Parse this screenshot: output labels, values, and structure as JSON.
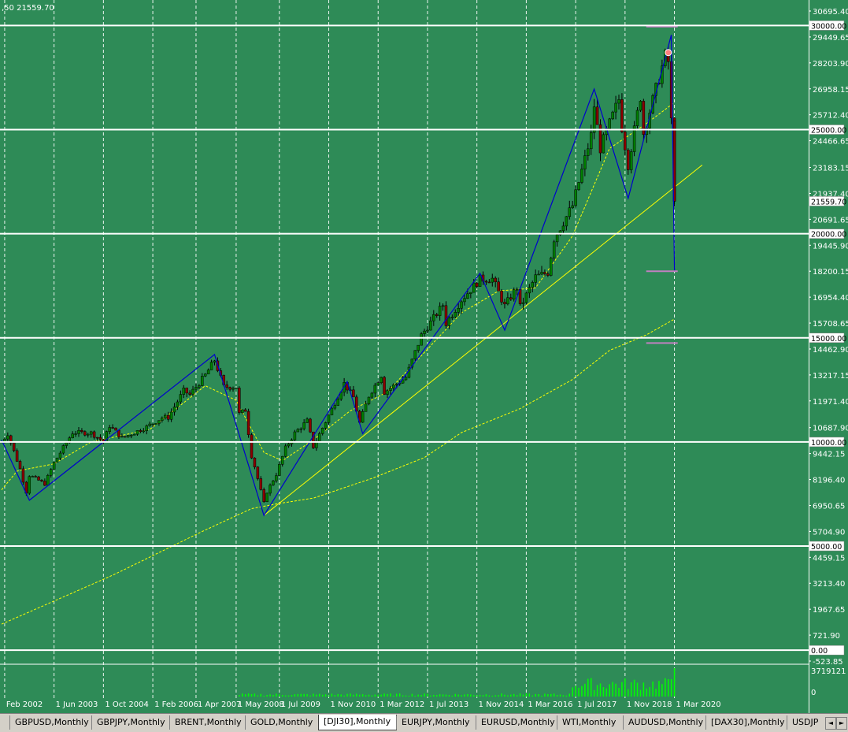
{
  "ohlc_readout": ",50 21559.70",
  "colors": {
    "background": "#2e8b57",
    "grid": "#ffffff",
    "text": "#ffffff",
    "bull_candle": "#008000",
    "bear_candle": "#8b0000",
    "wick": "#000000",
    "zigzag": "#0000cd",
    "ma_fast": "#ffff00",
    "ma_slow": "#ffff00",
    "trendline": "#ffff00",
    "level_line": "#ffffff",
    "volume": "#00ff00",
    "price_tag_bg": "#ffffff",
    "markers": "#c080c0"
  },
  "chart_data": {
    "type": "candlestick",
    "symbol": "[DJI30]",
    "timeframe": "Monthly",
    "price_axis": {
      "ylim": [
        -523.85,
        30695.4
      ],
      "ticks": [
        30695.4,
        29449.65,
        28203.9,
        26958.15,
        25712.4,
        24466.65,
        23183.15,
        21937.4,
        20691.65,
        19445.9,
        18200.15,
        16954.4,
        15708.65,
        14462.9,
        13217.15,
        11971.4,
        10687.9,
        9442.15,
        8196.4,
        6950.65,
        5704.9,
        4459.15,
        3213.4,
        1967.65,
        721.9,
        -523.85
      ],
      "tick_labels": [
        "30695.40",
        "29449.65",
        "28203.90",
        "26958.15",
        "25712.40",
        "24466.65",
        "23183.15",
        "21937.40",
        "20691.65",
        "19445.90",
        "18200.15",
        "16954.40",
        "15708.65",
        "14462.90",
        "13217.15",
        "11971.40",
        "10687.90",
        "9442.15",
        "8196.40",
        "6950.65",
        "5704.90",
        "4459.15",
        "3213.40",
        "1967.65",
        "721.90",
        "-523.85"
      ],
      "level_lines": [
        30000,
        25000,
        20000,
        15000,
        10000,
        5000,
        0
      ],
      "level_labels": [
        "30000.00",
        "25000.00",
        "20000.00",
        "15000.00",
        "10000.00",
        "5000.00",
        "0.00"
      ],
      "current_price": 21559.7,
      "current_price_label": "21559.70"
    },
    "time_axis": {
      "labels": [
        "Feb 2002",
        "1 Jun 2003",
        "1 Oct 2004",
        "1 Feb 2006",
        "1 Apr 2007",
        "1 May 2008",
        "1 Jul 2009",
        "1 Nov 2010",
        "1 Mar 2012",
        "1 Jul 2013",
        "1 Nov 2014",
        "1 Mar 2016",
        "1 Jul 2017",
        "1 Nov 2018",
        "1 Mar 2020"
      ],
      "grid_months": [
        "2002-02",
        "2003-06",
        "2004-10",
        "2006-02",
        "2007-04",
        "2008-05",
        "2009-07",
        "2010-11",
        "2012-03",
        "2013-07",
        "2014-11",
        "2016-03",
        "2017-07",
        "2018-11",
        "2020-03"
      ],
      "start": "2002-01",
      "end": "2021-06"
    },
    "close_anchors": [
      [
        "2002-01",
        10000
      ],
      [
        "2002-03",
        10400
      ],
      [
        "2002-07",
        8700
      ],
      [
        "2002-09",
        7600
      ],
      [
        "2002-10",
        8400
      ],
      [
        "2003-03",
        7990
      ],
      [
        "2003-06",
        9000
      ],
      [
        "2003-12",
        10450
      ],
      [
        "2004-06",
        10435
      ],
      [
        "2004-10",
        10030
      ],
      [
        "2004-12",
        10780
      ],
      [
        "2005-04",
        10190
      ],
      [
        "2005-12",
        10720
      ],
      [
        "2006-05",
        11170
      ],
      [
        "2006-07",
        11180
      ],
      [
        "2006-12",
        12460
      ],
      [
        "2007-02",
        12270
      ],
      [
        "2007-07",
        13210
      ],
      [
        "2007-10",
        13930
      ],
      [
        "2008-01",
        12650
      ],
      [
        "2008-05",
        12640
      ],
      [
        "2008-06",
        11350
      ],
      [
        "2008-08",
        11540
      ],
      [
        "2008-10",
        9330
      ],
      [
        "2008-11",
        8830
      ],
      [
        "2009-02",
        7060
      ],
      [
        "2009-03",
        7610
      ],
      [
        "2009-06",
        8450
      ],
      [
        "2009-09",
        9710
      ],
      [
        "2009-12",
        10430
      ],
      [
        "2010-04",
        11010
      ],
      [
        "2010-06",
        9770
      ],
      [
        "2010-12",
        11580
      ],
      [
        "2011-04",
        12810
      ],
      [
        "2011-07",
        12140
      ],
      [
        "2011-09",
        10910
      ],
      [
        "2011-12",
        12220
      ],
      [
        "2012-04",
        13210
      ],
      [
        "2012-05",
        12390
      ],
      [
        "2012-12",
        13100
      ],
      [
        "2013-05",
        15120
      ],
      [
        "2013-12",
        16580
      ],
      [
        "2014-01",
        15700
      ],
      [
        "2014-06",
        16830
      ],
      [
        "2014-12",
        17820
      ],
      [
        "2015-04",
        17840
      ],
      [
        "2015-08",
        16530
      ],
      [
        "2015-12",
        17430
      ],
      [
        "2016-01",
        16470
      ],
      [
        "2016-06",
        17930
      ],
      [
        "2016-10",
        18140
      ],
      [
        "2016-12",
        19760
      ],
      [
        "2017-06",
        21350
      ],
      [
        "2017-12",
        24720
      ],
      [
        "2018-01",
        26150
      ],
      [
        "2018-03",
        24100
      ],
      [
        "2018-09",
        26460
      ],
      [
        "2018-10",
        25120
      ],
      [
        "2018-12",
        23330
      ],
      [
        "2019-04",
        26590
      ],
      [
        "2019-05",
        24820
      ],
      [
        "2019-12",
        28540
      ],
      [
        "2020-01",
        28260
      ],
      [
        "2020-02",
        25410
      ],
      [
        "2020-03",
        21559.7
      ]
    ],
    "zigzag": [
      [
        "2002-01",
        10100
      ],
      [
        "2002-10",
        7200
      ],
      [
        "2007-10",
        14200
      ],
      [
        "2009-02",
        6470
      ],
      [
        "2011-05",
        12900
      ],
      [
        "2011-10",
        10400
      ],
      [
        "2014-12",
        18100
      ],
      [
        "2015-08",
        15370
      ],
      [
        "2018-01",
        26950
      ],
      [
        "2018-12",
        21700
      ],
      [
        "2020-02",
        29550
      ],
      [
        "2020-03",
        18200
      ]
    ],
    "ma_fast_anchors": [
      [
        "2002-01",
        7700
      ],
      [
        "2002-06",
        8600
      ],
      [
        "2003-06",
        8950
      ],
      [
        "2004-06",
        10000
      ],
      [
        "2006-01",
        10600
      ],
      [
        "2007-07",
        12700
      ],
      [
        "2008-05",
        12000
      ],
      [
        "2009-02",
        9500
      ],
      [
        "2009-08",
        9100
      ],
      [
        "2010-06",
        10100
      ],
      [
        "2011-06",
        11500
      ],
      [
        "2012-06",
        12400
      ],
      [
        "2013-06",
        14300
      ],
      [
        "2014-06",
        16200
      ],
      [
        "2015-06",
        17250
      ],
      [
        "2016-06",
        17400
      ],
      [
        "2017-06",
        19900
      ],
      [
        "2018-06",
        24100
      ],
      [
        "2019-06",
        25300
      ],
      [
        "2020-03",
        26300
      ]
    ],
    "ma_slow_anchors": [
      [
        "2002-01",
        1250
      ],
      [
        "2005-01",
        3600
      ],
      [
        "2007-06",
        5700
      ],
      [
        "2008-10",
        6800
      ],
      [
        "2009-07",
        7050
      ],
      [
        "2010-06",
        7300
      ],
      [
        "2012-01",
        8250
      ],
      [
        "2013-06",
        9250
      ],
      [
        "2014-06",
        10450
      ],
      [
        "2016-01",
        11600
      ],
      [
        "2017-06",
        13000
      ],
      [
        "2018-06",
        14400
      ],
      [
        "2019-06",
        15150
      ],
      [
        "2020-03",
        15900
      ]
    ],
    "trendline": [
      [
        "2009-02",
        6470
      ],
      [
        "2020-12",
        23300
      ]
    ],
    "markers": [
      {
        "time": "2020-01",
        "price": 29950,
        "kind": "top-range"
      },
      {
        "time": "2020-01",
        "price": 18200,
        "kind": "bottom-range"
      },
      {
        "time": "2020-01",
        "price": 14750,
        "kind": "target"
      }
    ],
    "volume": {
      "label_max": "3719121",
      "label_min": "0",
      "recent_bars_from": "2017-06"
    }
  },
  "tabs": [
    {
      "label": "GBPUSD,Monthly",
      "active": false
    },
    {
      "label": "GBPJPY,Monthly",
      "active": false
    },
    {
      "label": "BRENT,Monthly",
      "active": false
    },
    {
      "label": "GOLD,Monthly",
      "active": false
    },
    {
      "label": "[DJI30],Monthly",
      "active": true
    },
    {
      "label": "EURJPY,Monthly",
      "active": false
    },
    {
      "label": "EURUSD,Monthly",
      "active": false
    },
    {
      "label": "WTI,Monthly",
      "active": false
    },
    {
      "label": "AUDUSD,Monthly",
      "active": false
    },
    {
      "label": "[DAX30],Monthly",
      "active": false
    },
    {
      "label": "USDJP",
      "active": false
    }
  ],
  "scroll": {
    "left": "◄",
    "right": "►"
  }
}
